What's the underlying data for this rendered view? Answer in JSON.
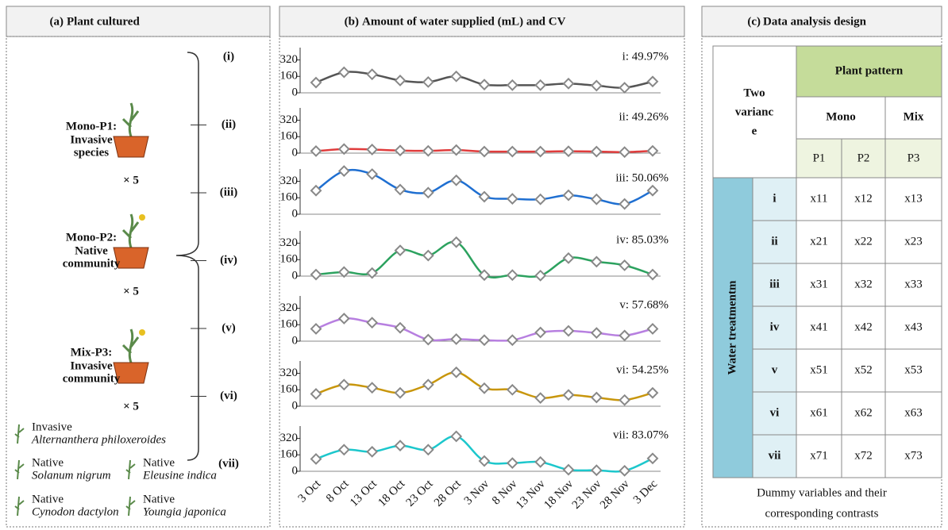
{
  "panel_a": {
    "label": "(a)",
    "title": "Plant cultured",
    "pots": [
      {
        "name": "Mono-P1:",
        "desc": [
          "Invasive",
          "species"
        ],
        "count": "× 5"
      },
      {
        "name": "Mono-P2:",
        "desc": [
          "Native",
          "community"
        ],
        "count": "× 5"
      },
      {
        "name": "Mix-P3:",
        "desc": [
          "Invasive",
          "community"
        ],
        "count": "× 5"
      }
    ],
    "treatments": [
      "(i)",
      "(ii)",
      "(iii)",
      "(iv)",
      "(v)",
      "(vi)",
      "(vii)"
    ],
    "legend": [
      {
        "status": "Invasive",
        "species": "Alternanthera philoxeroides"
      },
      {
        "status": "Native",
        "species": "Solanum nigrum"
      },
      {
        "status": "Native",
        "species": "Eleusine indica"
      },
      {
        "status": "Native",
        "species": "Cynodon dactylon"
      },
      {
        "status": "Native",
        "species": "Youngia japonica"
      }
    ]
  },
  "panel_b": {
    "label": "(b)",
    "title": "Amount of water supplied (mL) and CV"
  },
  "chart_data": [
    {
      "type": "line",
      "annotation": "i:  49.97%",
      "color": "#555555",
      "ylim": [
        0,
        440
      ],
      "yticks": [
        0,
        160,
        320
      ],
      "values": [
        100,
        200,
        180,
        120,
        105,
        160,
        80,
        75,
        75,
        90,
        70,
        50,
        110
      ]
    },
    {
      "type": "line",
      "annotation": "ii:  49.26%",
      "color": "#e03c3c",
      "ylim": [
        0,
        440
      ],
      "yticks": [
        0,
        160,
        320
      ],
      "values": [
        20,
        40,
        35,
        25,
        22,
        30,
        15,
        15,
        15,
        18,
        15,
        10,
        22
      ]
    },
    {
      "type": "line",
      "annotation": "iii: 50.06%",
      "color": "#1f6fd1",
      "ylim": [
        0,
        440
      ],
      "yticks": [
        0,
        160,
        320
      ],
      "values": [
        230,
        420,
        390,
        240,
        210,
        330,
        170,
        150,
        145,
        185,
        145,
        100,
        230
      ]
    },
    {
      "type": "line",
      "annotation": "iv: 85.03%",
      "color": "#2ca25f",
      "ylim": [
        0,
        440
      ],
      "yticks": [
        0,
        160,
        320
      ],
      "values": [
        15,
        40,
        30,
        250,
        200,
        330,
        10,
        10,
        5,
        175,
        140,
        105,
        15
      ]
    },
    {
      "type": "line",
      "annotation": "v:  57.68%",
      "color": "#b77fe0",
      "ylim": [
        0,
        440
      ],
      "yticks": [
        0,
        160,
        320
      ],
      "values": [
        120,
        220,
        180,
        130,
        15,
        20,
        10,
        10,
        85,
        100,
        80,
        55,
        120
      ]
    },
    {
      "type": "line",
      "annotation": "vi: 54.25%",
      "color": "#c8960c",
      "ylim": [
        0,
        440
      ],
      "yticks": [
        0,
        160,
        320
      ],
      "values": [
        120,
        210,
        180,
        130,
        210,
        330,
        175,
        160,
        80,
        110,
        85,
        60,
        130
      ]
    },
    {
      "type": "line",
      "annotation": "vii: 83.07%",
      "color": "#1cc7cc",
      "ylim": [
        0,
        440
      ],
      "yticks": [
        0,
        160,
        320
      ],
      "values": [
        120,
        210,
        190,
        250,
        210,
        340,
        100,
        80,
        90,
        15,
        10,
        5,
        125
      ],
      "categories": [
        "3 Oct",
        "8 Oct",
        "13 Oct",
        "18 Oct",
        "23 Oct",
        "28 Oct",
        "3 Nov",
        "8 Nov",
        "13 Nov",
        "18 Nov",
        "23 Nov",
        "28 Nov",
        "3 Dec"
      ]
    }
  ],
  "panel_c": {
    "label": "(c)",
    "title": "Data analysis design",
    "corner": [
      "Two",
      "varianc",
      "e"
    ],
    "col_group": "Plant pattern",
    "groups": [
      "Mono",
      "Mix"
    ],
    "plots": [
      "P1",
      "P2",
      "P3"
    ],
    "row_group": "Water treatmentm",
    "rows": [
      [
        "i",
        "x11",
        "x12",
        "x13"
      ],
      [
        "ii",
        "x21",
        "x22",
        "x23"
      ],
      [
        "iii",
        "x31",
        "x32",
        "x33"
      ],
      [
        "iv",
        "x41",
        "x42",
        "x43"
      ],
      [
        "v",
        "x51",
        "x52",
        "x53"
      ],
      [
        "vi",
        "x61",
        "x62",
        "x63"
      ],
      [
        "vii",
        "x71",
        "x72",
        "x73"
      ]
    ],
    "caption": [
      "Dummy variables and their",
      "corresponding contrasts"
    ]
  }
}
